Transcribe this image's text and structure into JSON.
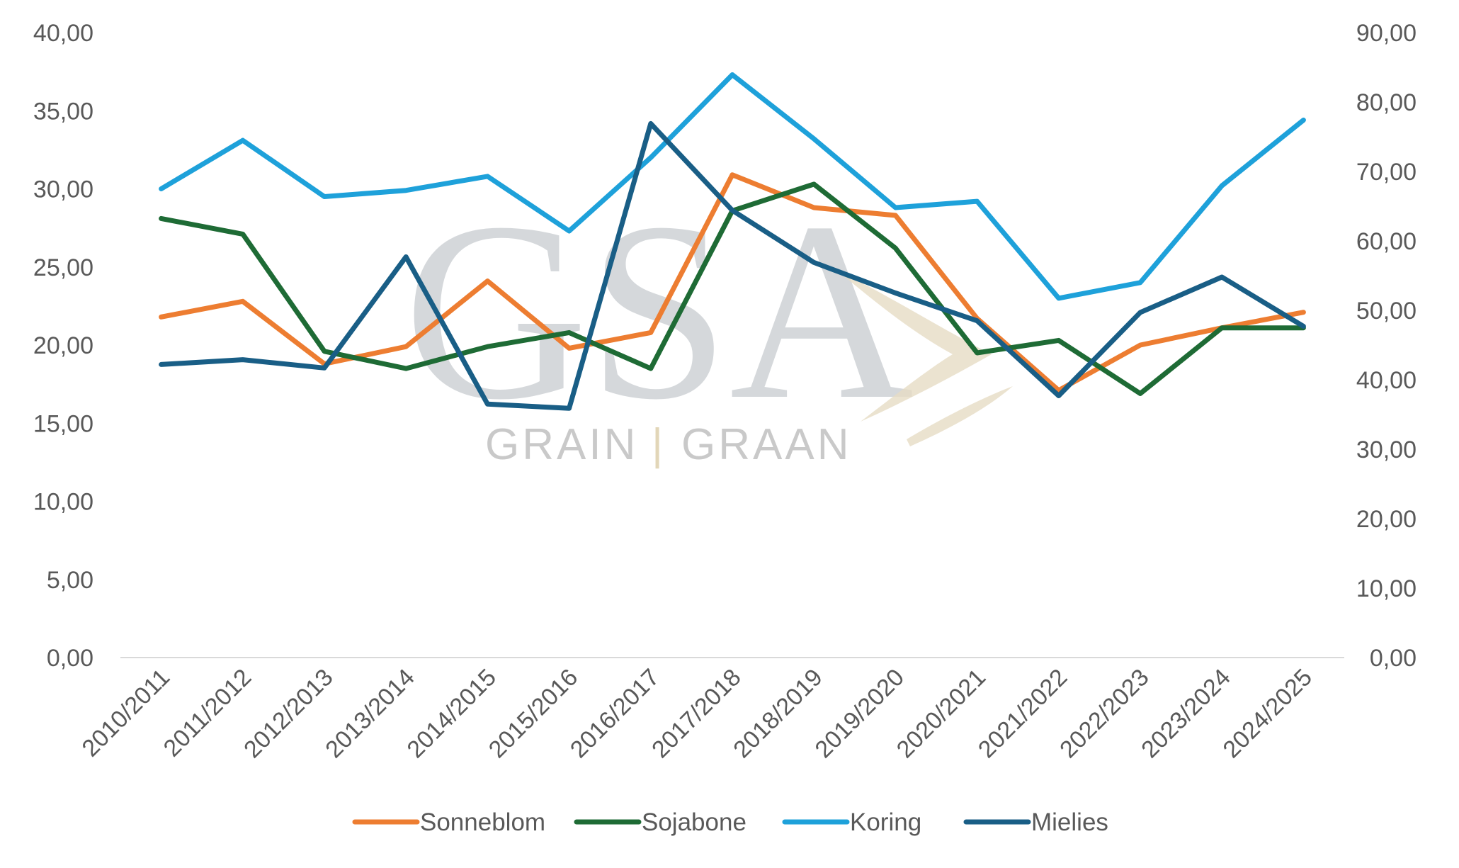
{
  "watermark": {
    "logo_text": "GSA",
    "caption_left": "GRAIN",
    "caption_sep": "|",
    "caption_right": "GRAAN"
  },
  "chart_data": {
    "type": "line",
    "categories": [
      "2010/2011",
      "2011/2012",
      "2012/2013",
      "2013/2014",
      "2014/2015",
      "2015/2016",
      "2016/2017",
      "2017/2018",
      "2018/2019",
      "2019/2020",
      "2020/2021",
      "2021/2022",
      "2022/2023",
      "2023/2024",
      "2024/2025"
    ],
    "y_left": {
      "ylim": [
        0,
        40
      ],
      "ticks": [
        "0,00",
        "5,00",
        "10,00",
        "15,00",
        "20,00",
        "25,00",
        "30,00",
        "35,00",
        "40,00"
      ],
      "tick_values": [
        0,
        5,
        10,
        15,
        20,
        25,
        30,
        35,
        40
      ]
    },
    "y_right": {
      "ylim": [
        0,
        90
      ],
      "ticks": [
        "0,00",
        "10,00",
        "20,00",
        "30,00",
        "40,00",
        "50,00",
        "60,00",
        "70,00",
        "80,00",
        "90,00"
      ],
      "tick_values": [
        0,
        10,
        20,
        30,
        40,
        50,
        60,
        70,
        80,
        90
      ]
    },
    "grid": false,
    "legend_position": "bottom",
    "series": [
      {
        "name": "Sonneblom",
        "color": "#ED7D31",
        "axis": "left",
        "values": [
          21.8,
          22.8,
          18.8,
          19.9,
          24.1,
          19.8,
          20.8,
          30.9,
          28.8,
          28.3,
          21.7,
          17.1,
          20.0,
          21.1,
          22.1
        ]
      },
      {
        "name": "Sojabone",
        "color": "#1E6B35",
        "axis": "left",
        "values": [
          28.1,
          27.1,
          19.6,
          18.5,
          19.9,
          20.8,
          18.5,
          28.6,
          30.3,
          26.2,
          19.5,
          20.3,
          16.9,
          21.1,
          21.1
        ]
      },
      {
        "name": "Koring",
        "color": "#1EA1DA",
        "axis": "left",
        "values": [
          30.0,
          33.1,
          29.5,
          29.9,
          30.8,
          27.3,
          32.0,
          37.3,
          33.2,
          28.8,
          29.2,
          23.0,
          24.0,
          30.2,
          34.4
        ]
      },
      {
        "name": "Mielies",
        "color": "#195E86",
        "axis": "right",
        "values": [
          42.2,
          42.9,
          41.7,
          57.7,
          36.5,
          35.9,
          76.9,
          64.4,
          56.9,
          52.5,
          48.5,
          37.7,
          49.7,
          54.8,
          47.7
        ]
      }
    ]
  }
}
